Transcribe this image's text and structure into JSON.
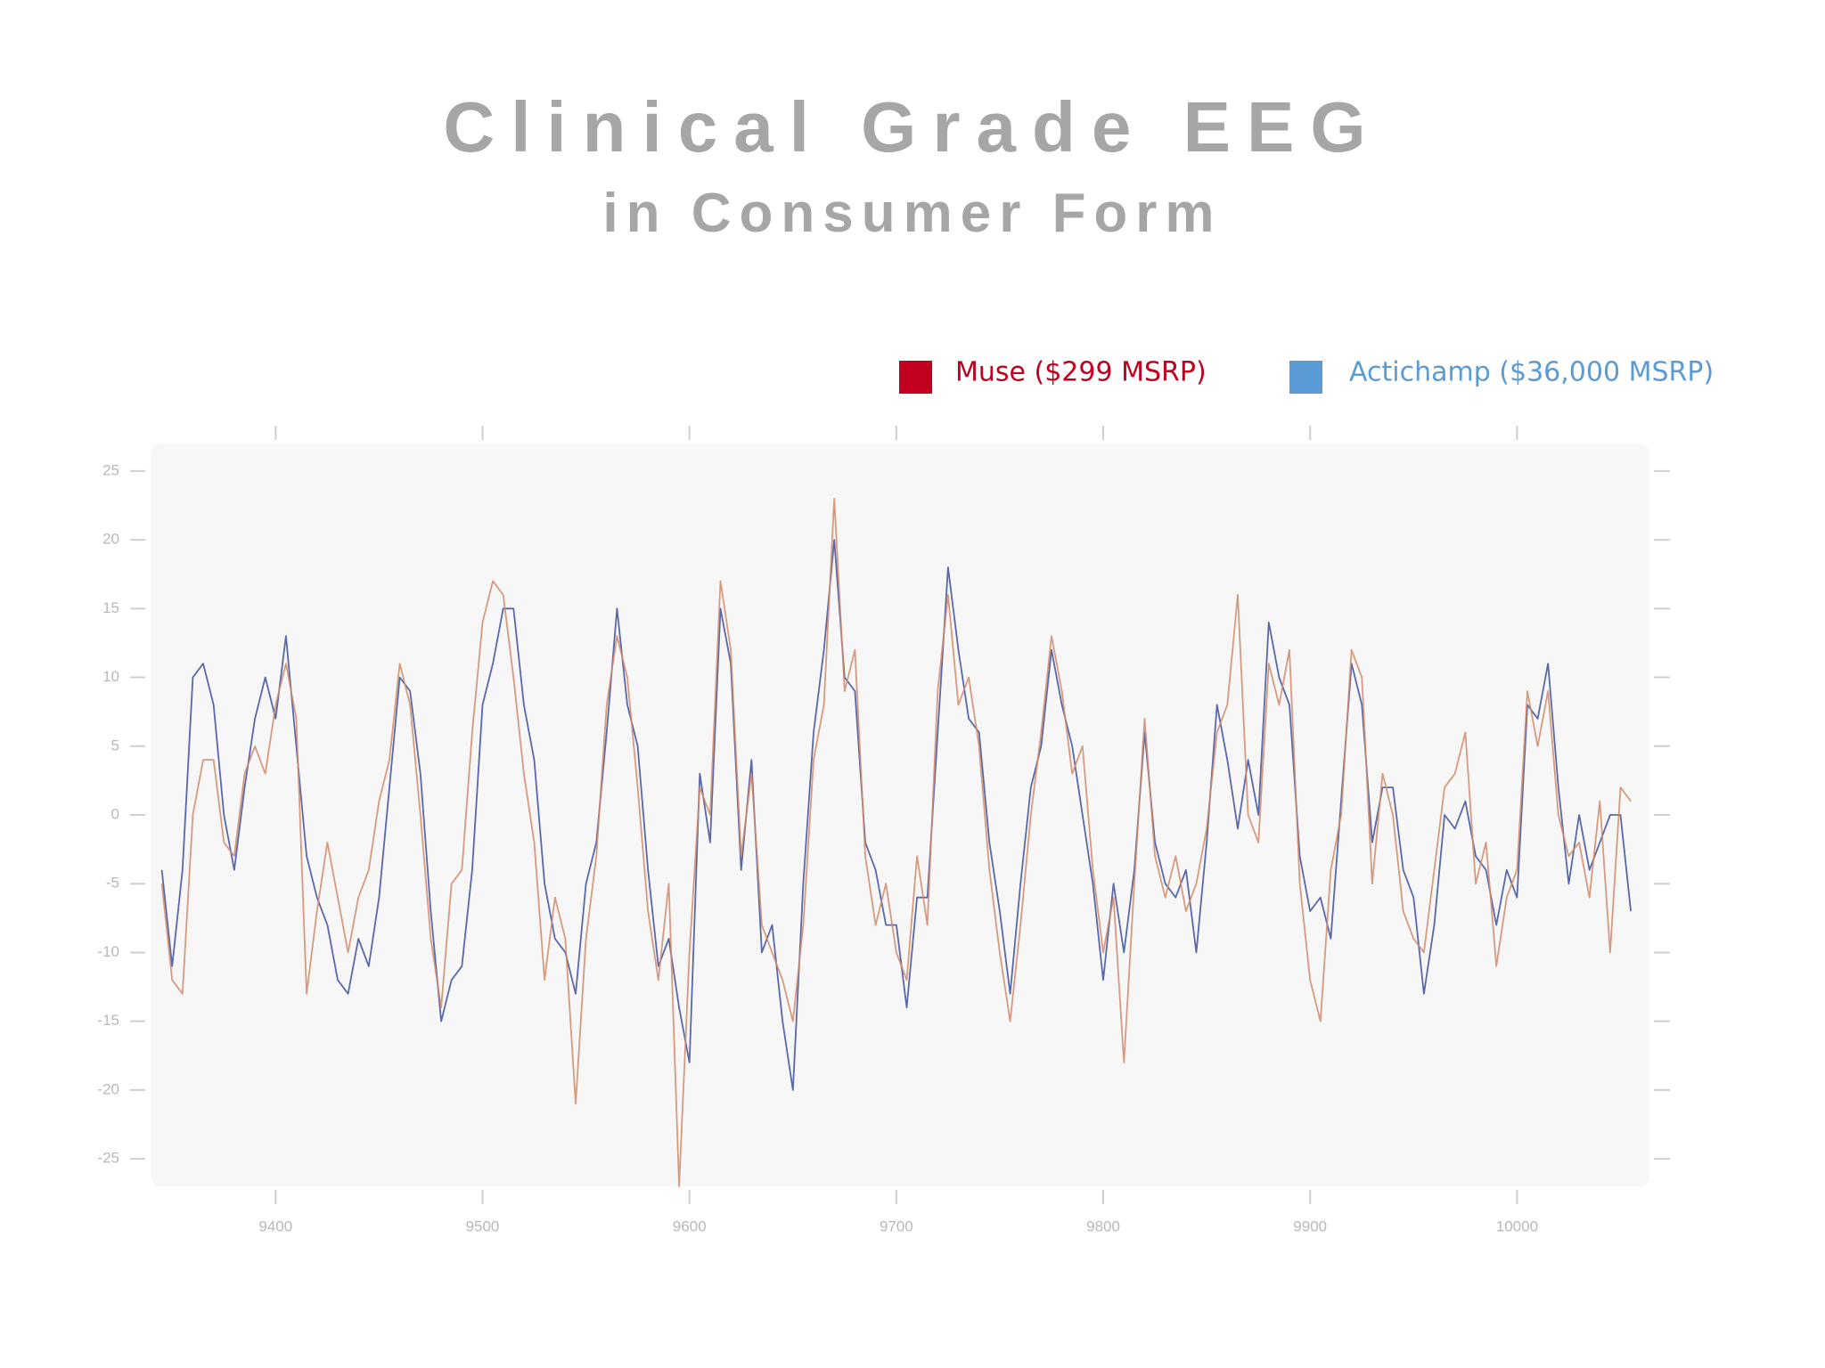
{
  "chart_data": {
    "type": "line",
    "title": "Clinical Grade EEG",
    "subtitle": "in Consumer Form",
    "x": [
      9345,
      9350,
      9355,
      9360,
      9365,
      9370,
      9375,
      9380,
      9385,
      9390,
      9395,
      9400,
      9405,
      9410,
      9415,
      9420,
      9425,
      9430,
      9435,
      9440,
      9445,
      9450,
      9455,
      9460,
      9465,
      9470,
      9475,
      9480,
      9485,
      9490,
      9495,
      9500,
      9505,
      9510,
      9515,
      9520,
      9525,
      9530,
      9535,
      9540,
      9545,
      9550,
      9555,
      9560,
      9565,
      9570,
      9575,
      9580,
      9585,
      9590,
      9595,
      9600,
      9605,
      9610,
      9615,
      9620,
      9625,
      9630,
      9635,
      9640,
      9645,
      9650,
      9655,
      9660,
      9665,
      9670,
      9675,
      9680,
      9685,
      9690,
      9695,
      9700,
      9705,
      9710,
      9715,
      9720,
      9725,
      9730,
      9735,
      9740,
      9745,
      9750,
      9755,
      9760,
      9765,
      9770,
      9775,
      9780,
      9785,
      9790,
      9795,
      9800,
      9805,
      9810,
      9815,
      9820,
      9825,
      9830,
      9835,
      9840,
      9845,
      9850,
      9855,
      9860,
      9865,
      9870,
      9875,
      9880,
      9885,
      9890,
      9895,
      9900,
      9905,
      9910,
      9915,
      9920,
      9925,
      9930,
      9935,
      9940,
      9945,
      9950,
      9955,
      9960,
      9965,
      9970,
      9975,
      9980,
      9985,
      9990,
      9995,
      10000,
      10005,
      10010,
      10015,
      10020,
      10025,
      10030,
      10035,
      10040,
      10045,
      10050,
      10055
    ],
    "series": [
      {
        "name": "Muse ($299 MSRP)",
        "color": "#c0001e",
        "line_color": "#d0896a",
        "values": [
          -5,
          -12,
          -13,
          0,
          4,
          4,
          -2,
          -3,
          3,
          5,
          3,
          8,
          11,
          7,
          -13,
          -7,
          -2,
          -6,
          -10,
          -6,
          -4,
          1,
          4,
          11,
          8,
          0,
          -9,
          -14,
          -5,
          -4,
          6,
          14,
          17,
          16,
          10,
          3,
          -2,
          -12,
          -6,
          -9,
          -21,
          -9,
          -3,
          8,
          13,
          10,
          2,
          -7,
          -12,
          -5,
          -27,
          -10,
          2,
          0,
          17,
          12,
          -3,
          3,
          -8,
          -10,
          -12,
          -15,
          -8,
          4,
          8,
          23,
          9,
          12,
          -3,
          -8,
          -5,
          -10,
          -12,
          -3,
          -8,
          9,
          16,
          8,
          10,
          5,
          -4,
          -10,
          -15,
          -8,
          0,
          6,
          13,
          9,
          3,
          5,
          -4,
          -10,
          -6,
          -18,
          -5,
          7,
          -3,
          -6,
          -3,
          -7,
          -5,
          -1,
          6,
          8,
          16,
          0,
          -2,
          11,
          8,
          12,
          -5,
          -12,
          -15,
          -4,
          0,
          12,
          10,
          -5,
          3,
          0,
          -7,
          -9,
          -10,
          -4,
          2,
          3,
          6,
          -5,
          -2,
          -11,
          -6,
          -4,
          9,
          5,
          9,
          0,
          -3,
          -2,
          -6,
          1,
          -10,
          2,
          1
        ]
      },
      {
        "name": "Actichamp ($36,000 MSRP)",
        "color": "#5b9bd5",
        "line_color": "#3d4f9a",
        "values": [
          -4,
          -11,
          -4,
          10,
          11,
          8,
          0,
          -4,
          2,
          7,
          10,
          7,
          13,
          5,
          -3,
          -6,
          -8,
          -12,
          -13,
          -9,
          -11,
          -6,
          2,
          10,
          9,
          3,
          -7,
          -15,
          -12,
          -11,
          -4,
          8,
          11,
          15,
          15,
          8,
          4,
          -5,
          -9,
          -10,
          -13,
          -5,
          -2,
          6,
          15,
          8,
          5,
          -4,
          -11,
          -9,
          -14,
          -18,
          3,
          -2,
          15,
          11,
          -4,
          4,
          -10,
          -8,
          -15,
          -20,
          -5,
          6,
          12,
          20,
          10,
          9,
          -2,
          -4,
          -8,
          -8,
          -14,
          -6,
          -6,
          6,
          18,
          12,
          7,
          6,
          -2,
          -7,
          -13,
          -5,
          2,
          5,
          12,
          8,
          5,
          0,
          -5,
          -12,
          -5,
          -10,
          -4,
          6,
          -2,
          -5,
          -6,
          -4,
          -10,
          -2,
          8,
          4,
          -1,
          4,
          0,
          14,
          10,
          8,
          -3,
          -7,
          -6,
          -9,
          1,
          11,
          8,
          -2,
          2,
          2,
          -4,
          -6,
          -13,
          -8,
          0,
          -1,
          1,
          -3,
          -4,
          -8,
          -4,
          -6,
          8,
          7,
          11,
          2,
          -5,
          0,
          -4,
          -2,
          0,
          0,
          -7
        ]
      }
    ],
    "xlim": [
      9340,
      10064
    ],
    "xticks": [
      9400,
      9500,
      9600,
      9700,
      9800,
      9900,
      10000
    ],
    "ylim": [
      -27,
      27
    ],
    "yticks": [
      -25,
      -20,
      -15,
      -10,
      -5,
      0,
      5,
      10,
      15,
      20,
      25
    ]
  }
}
